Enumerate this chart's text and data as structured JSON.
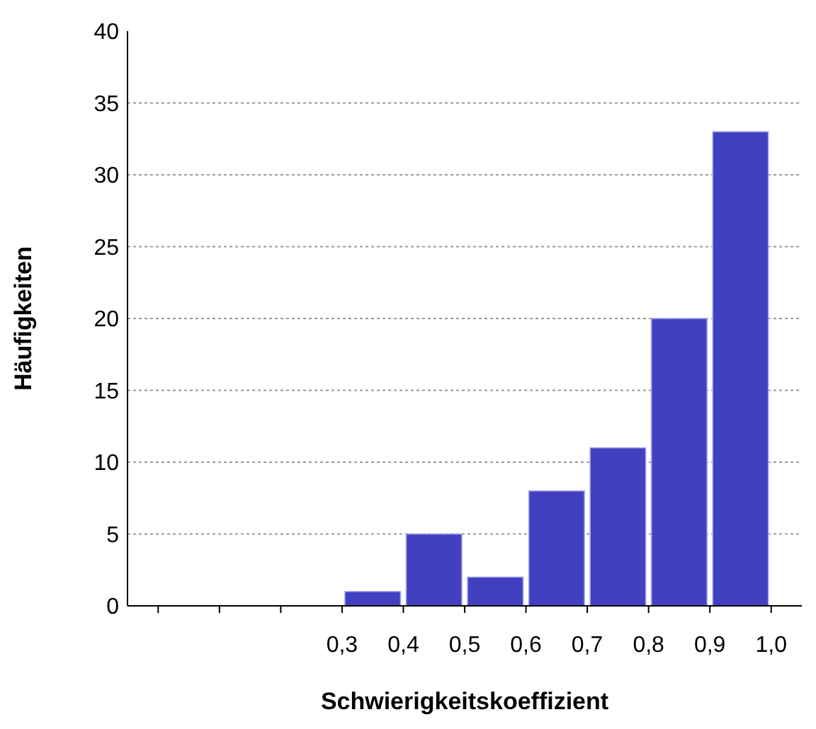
{
  "chart_data": {
    "type": "histogram",
    "xlabel": "Schwierigkeitskoeffizient",
    "ylabel": "Häufigkeiten",
    "bins": [
      0.0,
      0.1,
      0.2,
      0.3,
      0.4,
      0.5,
      0.6,
      0.7,
      0.8,
      0.9,
      1.0
    ],
    "values": [
      0,
      0,
      0,
      1,
      5,
      2,
      8,
      11,
      20,
      33
    ],
    "color": "#4040c0",
    "xlim": [
      -0.05,
      1.05
    ],
    "xticks": [
      {
        "value": 0.0,
        "label": null
      },
      {
        "value": 0.1,
        "label": null
      },
      {
        "value": 0.2,
        "label": null
      },
      {
        "value": 0.3,
        "label": "0,3"
      },
      {
        "value": 0.4,
        "label": "0,4"
      },
      {
        "value": 0.5,
        "label": "0,5"
      },
      {
        "value": 0.6,
        "label": "0,6"
      },
      {
        "value": 0.7,
        "label": "0,7"
      },
      {
        "value": 0.8,
        "label": "0,8"
      },
      {
        "value": 0.9,
        "label": "0,9"
      },
      {
        "value": 1.0,
        "label": "1,0"
      }
    ],
    "ylim": [
      0,
      40
    ],
    "yticks": [
      0,
      5,
      10,
      15,
      20,
      25,
      30,
      35,
      40
    ],
    "grid": "y"
  }
}
